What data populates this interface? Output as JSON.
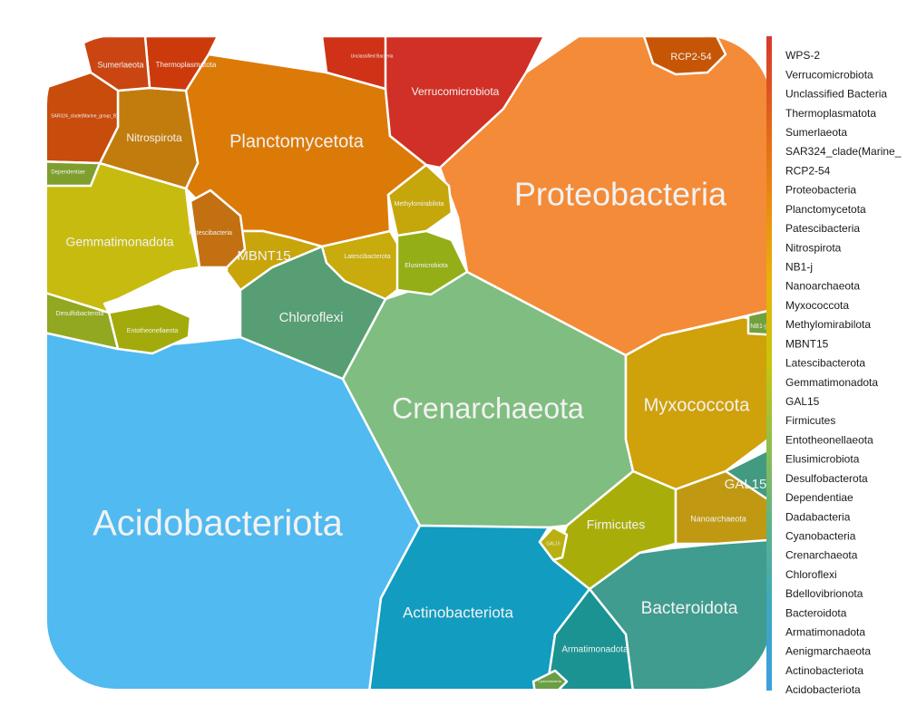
{
  "chart_data": {
    "type": "voronoi_treemap",
    "title": "",
    "cells": [
      {
        "name": "Acidobacteriota",
        "color": "#51baf0"
      },
      {
        "name": "Crenarchaeota",
        "color": "#80bd80"
      },
      {
        "name": "Proteobacteria",
        "color": "#f48b38"
      },
      {
        "name": "Planctomycetota",
        "color": "#dc7a08"
      },
      {
        "name": "Actinobacteriota",
        "color": "#119cc0"
      },
      {
        "name": "Bacteroidota",
        "color": "#3f9c8e"
      },
      {
        "name": "Myxococcota",
        "color": "#cfa10a"
      },
      {
        "name": "Chloroflexi",
        "color": "#579e74"
      },
      {
        "name": "Gemmatimonadota",
        "color": "#c8bb10"
      },
      {
        "name": "Verrucomicrobiota",
        "color": "#d03026"
      },
      {
        "name": "Firmicutes",
        "color": "#a9ad0a"
      },
      {
        "name": "Armatimonadota",
        "color": "#1b9392"
      },
      {
        "name": "Nitrospirota",
        "color": "#c27c0e"
      },
      {
        "name": "Unclassified Bacteria",
        "color": "#cf3216"
      },
      {
        "name": "Thermoplasmatota",
        "color": "#cc3a0c"
      },
      {
        "name": "Sumerlaeota",
        "color": "#ca4512"
      },
      {
        "name": "SAR324_clade(Marine_group_B)",
        "color": "#c84c0c"
      },
      {
        "name": "RCP2-54",
        "color": "#c65606"
      },
      {
        "name": "MBNT15",
        "color": "#c9a50c"
      },
      {
        "name": "Methylomirabilota",
        "color": "#c5a70c"
      },
      {
        "name": "Patescibacteria",
        "color": "#c27012"
      },
      {
        "name": "Latescibacterota",
        "color": "#c8ab0c"
      },
      {
        "name": "Elusimicrobiota",
        "color": "#94ae18"
      },
      {
        "name": "Entotheonellaeota",
        "color": "#a3ab0c"
      },
      {
        "name": "Desulfobacterota",
        "color": "#92a820"
      },
      {
        "name": "Dependentiae",
        "color": "#7e9f2e"
      },
      {
        "name": "Bdellovibrionota",
        "color": "#429a80"
      },
      {
        "name": "Nanoarchaeota",
        "color": "#c19812"
      },
      {
        "name": "GAL15",
        "color": "#b9b012"
      },
      {
        "name": "Dadabacteria",
        "color": "#72a03c"
      },
      {
        "name": "Cyanobacteria",
        "color": "#6a9e44"
      },
      {
        "name": "NB1-j",
        "color": "#c99c0c"
      },
      {
        "name": "Aenigmarchaeota",
        "color": "#1d96a8"
      }
    ],
    "legend": {
      "placement": "right",
      "entries": [
        "WPS-2",
        "Verrucomicrobiota",
        "Unclassified Bacteria",
        "Thermoplasmatota",
        "Sumerlaeota",
        "SAR324_clade(Marine_",
        "RCP2-54",
        "Proteobacteria",
        "Planctomycetota",
        "Patescibacteria",
        "Nitrospirota",
        "NB1-j",
        "Nanoarchaeota",
        "Myxococcota",
        "Methylomirabilota",
        "MBNT15",
        "Latescibacterota",
        "Gemmatimonadota",
        "GAL15",
        "Firmicutes",
        "Entotheonellaeota",
        "Elusimicrobiota",
        "Desulfobacterota",
        "Dependentiae",
        "Dadabacteria",
        "Cyanobacteria",
        "Crenarchaeota",
        "Chloroflexi",
        "Bdellovibrionota",
        "Bacteroidota",
        "Armatimonadota",
        "Aenigmarchaeota",
        "Actinobacteriota",
        "Acidobacteriota"
      ],
      "gradient_colors": [
        "#d8392f",
        "#e0621a",
        "#e98a10",
        "#e9b10a",
        "#c8c40c",
        "#8fbe4f",
        "#5cb38a",
        "#3ca7c0",
        "#3b9fe0"
      ]
    }
  }
}
